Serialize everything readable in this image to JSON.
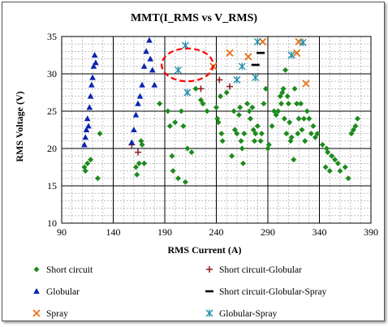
{
  "chart_data": {
    "type": "scatter",
    "title": "MMT(I_RMS vs V_RMS)",
    "xlabel": "RMS Current (A)",
    "ylabel": "RMS Voltage (V)",
    "xlim": [
      90,
      390
    ],
    "ylim": [
      10,
      35
    ],
    "x_ticks": [
      90,
      140,
      190,
      240,
      290,
      340,
      390
    ],
    "y_ticks": [
      10,
      15,
      20,
      25,
      30,
      35
    ],
    "x_tick_labels": [
      "90",
      "140",
      "190",
      "240",
      "290",
      "340",
      "390"
    ],
    "y_tick_labels": [
      "10",
      "15",
      "20",
      "25",
      "30",
      "35"
    ],
    "x_minor_step": 10,
    "y_minor_step": 1,
    "grid": true,
    "legend_position": "bottom",
    "annotation": {
      "shape": "dashed-ellipse",
      "color": "#ff0000",
      "cx": 212,
      "cy": 31.2,
      "rx": 25,
      "ry": 2.2
    },
    "series": [
      {
        "name": "Short circuit",
        "marker": "diamond",
        "color": "#1e8a1e",
        "points": [
          [
            112,
            17.5
          ],
          [
            113,
            17
          ],
          [
            115,
            18
          ],
          [
            118,
            18.5
          ],
          [
            125,
            16
          ],
          [
            127,
            22
          ],
          [
            162,
            17.5
          ],
          [
            163,
            16.5
          ],
          [
            165,
            18
          ],
          [
            167,
            21
          ],
          [
            168,
            20.5
          ],
          [
            170,
            18
          ],
          [
            185,
            26
          ],
          [
            193,
            25
          ],
          [
            195,
            23
          ],
          [
            197,
            19
          ],
          [
            198,
            17
          ],
          [
            200,
            23.5
          ],
          [
            203,
            16
          ],
          [
            206,
            25
          ],
          [
            208,
            23
          ],
          [
            210,
            15.5
          ],
          [
            212,
            20
          ],
          [
            216,
            19.5
          ],
          [
            220,
            28
          ],
          [
            225,
            26.5
          ],
          [
            227,
            26
          ],
          [
            231,
            25
          ],
          [
            240,
            25.5
          ],
          [
            241,
            24
          ],
          [
            242,
            23.5
          ],
          [
            244,
            27
          ],
          [
            245,
            22
          ],
          [
            246,
            21
          ],
          [
            250,
            27.5
          ],
          [
            255,
            19
          ],
          [
            257,
            25
          ],
          [
            258,
            22.5
          ],
          [
            260,
            22
          ],
          [
            262,
            24.5
          ],
          [
            263,
            25.5
          ],
          [
            264,
            21
          ],
          [
            265,
            20
          ],
          [
            266,
            18
          ],
          [
            267,
            22
          ],
          [
            270,
            26
          ],
          [
            272,
            25
          ],
          [
            273,
            24
          ],
          [
            275,
            25.5
          ],
          [
            276,
            22.5
          ],
          [
            277,
            21
          ],
          [
            278,
            22
          ],
          [
            280,
            23
          ],
          [
            283,
            21
          ],
          [
            284,
            22
          ],
          [
            286,
            26
          ],
          [
            288,
            28
          ],
          [
            290,
            20
          ],
          [
            291,
            20.5
          ],
          [
            294,
            23
          ],
          [
            296,
            25
          ],
          [
            298,
            24.5
          ],
          [
            300,
            25
          ],
          [
            302,
            27
          ],
          [
            303,
            26
          ],
          [
            304,
            27.5
          ],
          [
            305,
            28
          ],
          [
            306,
            24
          ],
          [
            307,
            30.5
          ],
          [
            308,
            22
          ],
          [
            309,
            27
          ],
          [
            310,
            26
          ],
          [
            311,
            23.5
          ],
          [
            312,
            21
          ],
          [
            313,
            21.5
          ],
          [
            315,
            18.5
          ],
          [
            316,
            28
          ],
          [
            318,
            26
          ],
          [
            319,
            22
          ],
          [
            320,
            24
          ],
          [
            322,
            26
          ],
          [
            323,
            22.5
          ],
          [
            325,
            24
          ],
          [
            326,
            21
          ],
          [
            328,
            25
          ],
          [
            330,
            24
          ],
          [
            332,
            22
          ],
          [
            334,
            23
          ],
          [
            336,
            21.5
          ],
          [
            338,
            22
          ],
          [
            343,
            20.5
          ],
          [
            346,
            17.5
          ],
          [
            347,
            20
          ],
          [
            348,
            19.5
          ],
          [
            350,
            17
          ],
          [
            352,
            19
          ],
          [
            355,
            18.5
          ],
          [
            358,
            18
          ],
          [
            360,
            17
          ],
          [
            365,
            17.5
          ],
          [
            368,
            16
          ],
          [
            371,
            22
          ],
          [
            373,
            22.5
          ],
          [
            375,
            23
          ],
          [
            377,
            24
          ]
        ]
      },
      {
        "name": "Short circuit-Globular",
        "marker": "plus",
        "color": "#8b1a1a",
        "points": [
          [
            158,
            20.5
          ],
          [
            164,
            19.5
          ],
          [
            225,
            28
          ],
          [
            243,
            29.2
          ],
          [
            253,
            28.3
          ]
        ]
      },
      {
        "name": "Globular",
        "marker": "triangle",
        "color": "#0a24b0",
        "points": [
          [
            112,
            20.5
          ],
          [
            113,
            21.5
          ],
          [
            114,
            22.5
          ],
          [
            115,
            24
          ],
          [
            116,
            23
          ],
          [
            117,
            25.5
          ],
          [
            118,
            27
          ],
          [
            119,
            28.5
          ],
          [
            120,
            29.5
          ],
          [
            121,
            31
          ],
          [
            122,
            32.5
          ],
          [
            123,
            31.5
          ],
          [
            158,
            20.8
          ],
          [
            160,
            22.5
          ],
          [
            162,
            24.5
          ],
          [
            164,
            26
          ],
          [
            166,
            27
          ],
          [
            168,
            28.5
          ],
          [
            170,
            31
          ],
          [
            172,
            33
          ],
          [
            175,
            34.5
          ],
          [
            176,
            32
          ],
          [
            178,
            30.5
          ],
          [
            180,
            28.5
          ]
        ]
      },
      {
        "name": "Short circuit-Globular-Spray",
        "marker": "dash",
        "color": "#000000",
        "points": [
          [
            278,
            31.2
          ],
          [
            283,
            32.8
          ]
        ]
      },
      {
        "name": "Spray",
        "marker": "x",
        "color": "#e8701a",
        "points": [
          [
            237,
            31
          ],
          [
            253,
            32.8
          ],
          [
            271,
            32.3
          ],
          [
            285,
            34.3
          ],
          [
            318,
            32.8
          ],
          [
            320,
            34.3
          ],
          [
            327,
            28.7
          ]
        ]
      },
      {
        "name": "Globular-Spray",
        "marker": "asterisk",
        "color": "#1a8aa8",
        "points": [
          [
            203,
            30.5
          ],
          [
            210,
            33.8
          ],
          [
            212,
            27.5
          ],
          [
            260,
            29.2
          ],
          [
            265,
            31
          ],
          [
            278,
            29.5
          ],
          [
            280,
            34.3
          ],
          [
            313,
            32.5
          ],
          [
            324,
            34.2
          ]
        ]
      }
    ]
  }
}
